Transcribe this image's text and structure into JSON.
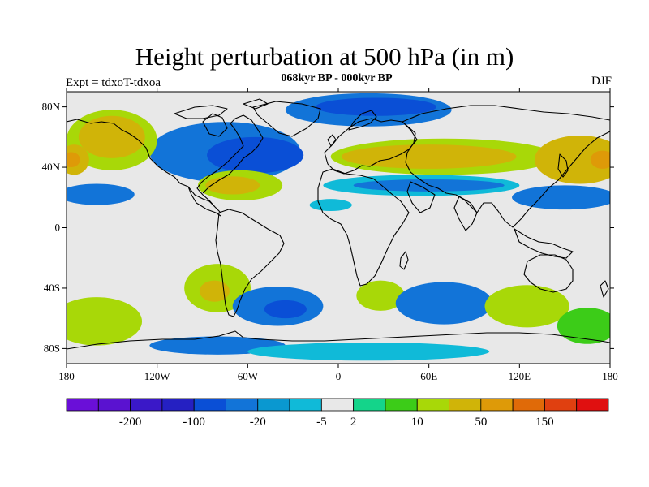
{
  "title": "Height perturbation at 500 hPa (in m)",
  "subtitle": "068kyr BP - 000kyr BP",
  "left_label": "Expt = tdxoT-tdxoa",
  "right_label": "DJF",
  "axes": {
    "lat_labels": [
      "80N",
      "40N",
      "0",
      "40S",
      "80S"
    ],
    "lon_labels": [
      "180",
      "120W",
      "60W",
      "0",
      "60E",
      "120E",
      "180"
    ]
  },
  "colorbar": {
    "colors": [
      "#6a0fd8",
      "#5a12d0",
      "#3a18c8",
      "#2520c2",
      "#0a4fd6",
      "#1274d8",
      "#0a98d0",
      "#10bad8",
      "#e8e8e8",
      "#14d48a",
      "#3ccc18",
      "#a8d808",
      "#d0b408",
      "#de9a08",
      "#e06a08",
      "#e04010",
      "#e01010"
    ],
    "labels": [
      "-200",
      "-100",
      "-20",
      "-5",
      "2",
      "10",
      "50",
      "150"
    ]
  },
  "map_field": {
    "background": "#e8e8e8",
    "blobs": [
      {
        "name": "blob-arctic-negative",
        "color": "#1274d8",
        "lon": 20,
        "lat": 78,
        "rx": 55,
        "ry": 11
      },
      {
        "name": "blob-arctic-negative-core",
        "color": "#0a4fd6",
        "lon": 25,
        "lat": 80,
        "rx": 40,
        "ry": 6
      },
      {
        "name": "blob-north-america-negative",
        "color": "#1274d8",
        "lon": -75,
        "lat": 50,
        "rx": 50,
        "ry": 20
      },
      {
        "name": "blob-north-america-negative-core",
        "color": "#0a4fd6",
        "lon": -55,
        "lat": 48,
        "rx": 32,
        "ry": 12
      },
      {
        "name": "blob-pacific-north-positive",
        "color": "#a8d808",
        "lon": -150,
        "lat": 58,
        "rx": 30,
        "ry": 20
      },
      {
        "name": "blob-pacific-north-positive-core",
        "color": "#d0b408",
        "lon": -150,
        "lat": 60,
        "rx": 22,
        "ry": 14
      },
      {
        "name": "blob-eurasia-positive",
        "color": "#a8d808",
        "lon": 70,
        "lat": 47,
        "rx": 75,
        "ry": 12
      },
      {
        "name": "blob-eurasia-positive-core",
        "color": "#d0b408",
        "lon": 60,
        "lat": 47,
        "rx": 58,
        "ry": 8
      },
      {
        "name": "blob-east-asia-positive",
        "color": "#d0b408",
        "lon": 160,
        "lat": 45,
        "rx": 30,
        "ry": 16
      },
      {
        "name": "blob-east-asia-positive-core",
        "color": "#de9a08",
        "lon": 175,
        "lat": 45,
        "rx": 8,
        "ry": 6
      },
      {
        "name": "blob-west-pacific-positive",
        "color": "#d0b408",
        "lon": -175,
        "lat": 45,
        "rx": 10,
        "ry": 10
      },
      {
        "name": "blob-west-pacific-positive-core",
        "color": "#de9a08",
        "lon": -177,
        "lat": 45,
        "rx": 6,
        "ry": 5
      },
      {
        "name": "blob-atlantic-positive",
        "color": "#a8d808",
        "lon": -65,
        "lat": 28,
        "rx": 28,
        "ry": 10
      },
      {
        "name": "blob-atlantic-positive-core",
        "color": "#d0b408",
        "lon": -70,
        "lat": 28,
        "rx": 18,
        "ry": 6
      },
      {
        "name": "blob-north-pacific-negative",
        "color": "#1274d8",
        "lon": -160,
        "lat": 22,
        "rx": 25,
        "ry": 7
      },
      {
        "name": "blob-asia-negative",
        "color": "#10bad8",
        "lon": 55,
        "lat": 28,
        "rx": 65,
        "ry": 7
      },
      {
        "name": "blob-asia-negative-core",
        "color": "#1274d8",
        "lon": 60,
        "lat": 28,
        "rx": 50,
        "ry": 4
      },
      {
        "name": "blob-west-pacific-negative",
        "color": "#1274d8",
        "lon": 150,
        "lat": 20,
        "rx": 35,
        "ry": 8
      },
      {
        "name": "blob-tropical-atlantic-negative",
        "color": "#10bad8",
        "lon": -5,
        "lat": 15,
        "rx": 14,
        "ry": 4
      },
      {
        "name": "blob-south-america-positive",
        "color": "#a8d808",
        "lon": -80,
        "lat": -40,
        "rx": 22,
        "ry": 16
      },
      {
        "name": "blob-south-america-positive-core",
        "color": "#d0b408",
        "lon": -82,
        "lat": -42,
        "rx": 10,
        "ry": 7
      },
      {
        "name": "blob-south-pacific-positive",
        "color": "#a8d808",
        "lon": -160,
        "lat": -62,
        "rx": 30,
        "ry": 16
      },
      {
        "name": "blob-south-atlantic-negative",
        "color": "#1274d8",
        "lon": -40,
        "lat": -52,
        "rx": 30,
        "ry": 13
      },
      {
        "name": "blob-south-atlantic-negative-core",
        "color": "#0a4fd6",
        "lon": -35,
        "lat": -54,
        "rx": 14,
        "ry": 6
      },
      {
        "name": "blob-southern-africa-positive",
        "color": "#a8d808",
        "lon": 28,
        "lat": -45,
        "rx": 16,
        "ry": 10
      },
      {
        "name": "blob-indian-ocean-negative",
        "color": "#1274d8",
        "lon": 70,
        "lat": -50,
        "rx": 32,
        "ry": 14
      },
      {
        "name": "blob-south-indian-positive",
        "color": "#a8d808",
        "lon": 125,
        "lat": -52,
        "rx": 28,
        "ry": 14
      },
      {
        "name": "blob-southern-ocean-positive",
        "color": "#3ccc18",
        "lon": 165,
        "lat": -65,
        "rx": 20,
        "ry": 12
      },
      {
        "name": "blob-antarctic-negative",
        "color": "#1274d8",
        "lon": -80,
        "lat": -78,
        "rx": 45,
        "ry": 6
      },
      {
        "name": "blob-southern-ocean-negative",
        "color": "#10bad8",
        "lon": 20,
        "lat": -82,
        "rx": 80,
        "ry": 6
      }
    ]
  }
}
